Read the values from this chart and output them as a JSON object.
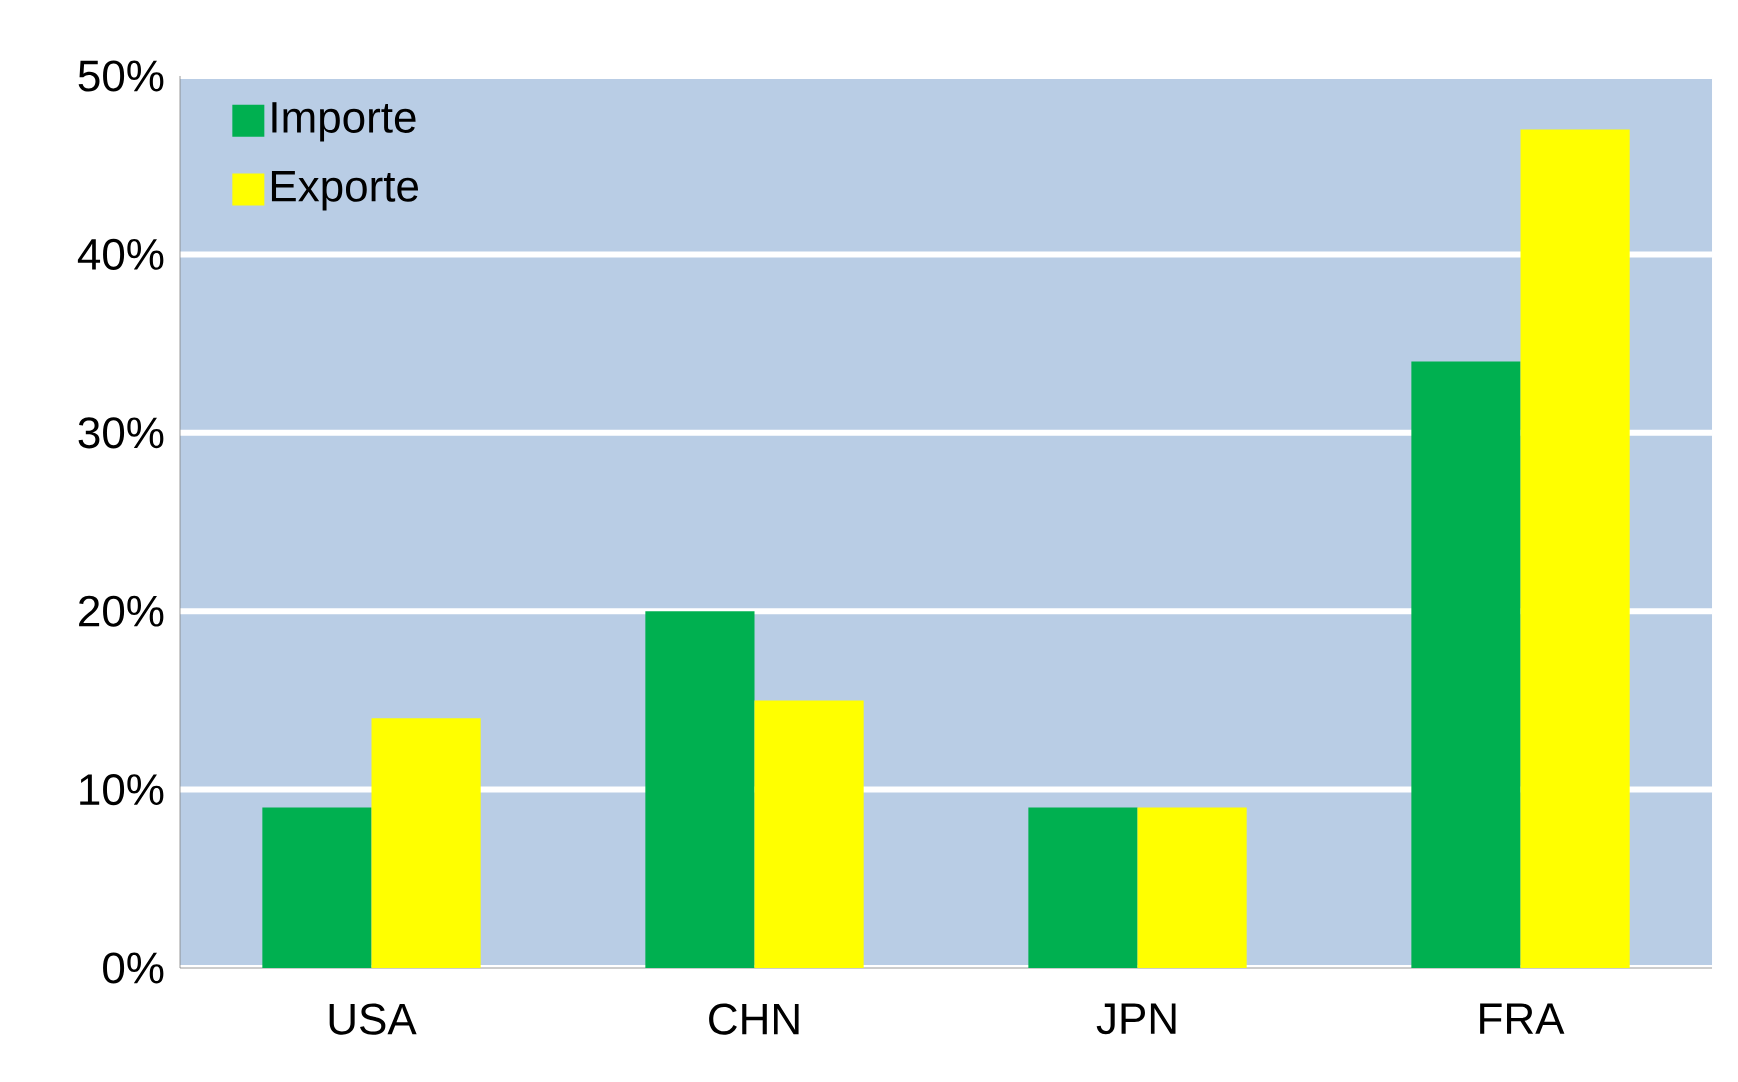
{
  "chart_data": {
    "type": "bar",
    "categories": [
      "USA",
      "CHN",
      "JPN",
      "FRA"
    ],
    "series": [
      {
        "name": "Importe",
        "color": "#00b050",
        "values": [
          9,
          20,
          9,
          34
        ]
      },
      {
        "name": "Exporte",
        "color": "#ffff00",
        "values": [
          14,
          15,
          9,
          47
        ]
      }
    ],
    "ylim": [
      0,
      50
    ],
    "yticks": [
      {
        "value": 0,
        "label": "0%"
      },
      {
        "value": 10,
        "label": "10%"
      },
      {
        "value": 20,
        "label": "20%"
      },
      {
        "value": 30,
        "label": "30%"
      },
      {
        "value": 40,
        "label": "40%"
      },
      {
        "value": 50,
        "label": "50%"
      }
    ],
    "grid": "y",
    "legend": "top left"
  }
}
